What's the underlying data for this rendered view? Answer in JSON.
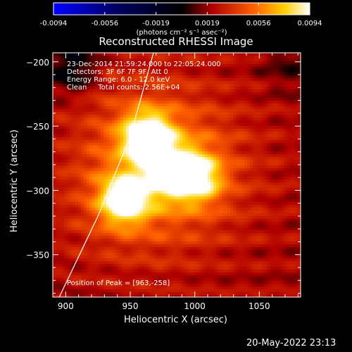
{
  "chart_data": {
    "type": "heatmap",
    "title": "Reconstructed RHESSI Image",
    "xlabel": "Heliocentric X (arcsec)",
    "ylabel": "Heliocentric Y (arcsec)",
    "xlim": [
      890,
      1082
    ],
    "ylim": [
      -383,
      -193
    ],
    "xticks": [
      "900",
      "950",
      "1000",
      "1050"
    ],
    "yticks": [
      "-200",
      "-250",
      "-300",
      "-350"
    ],
    "colorbar": {
      "range": [
        -0.0094,
        0.0094
      ],
      "ticks": [
        "-0.0094",
        "-0.0056",
        "-0.0019",
        "0.0019",
        "0.0056",
        "0.0094"
      ],
      "unit_label": "(photons cm⁻² s⁻¹ asec⁻²)"
    },
    "sources": [
      {
        "x": 963,
        "y": -258,
        "peak": 0.0094
      },
      {
        "x": 945,
        "y": -308,
        "peak": 0.0085
      },
      {
        "x": 1002,
        "y": -290,
        "peak": 0.007
      },
      {
        "x": 980,
        "y": -285,
        "peak": 0.0065
      }
    ],
    "limb_curve": [
      [
        895,
        -383
      ],
      [
        925,
        -320
      ],
      [
        950,
        -258
      ],
      [
        968,
        -193
      ]
    ]
  },
  "annotations": {
    "time": "23-Dec-2014 21:59:24.000 to 22:05:24.000",
    "detectors": "Detectors: 3F 6F 7F 9F, Att 0",
    "energy": "Energy Range: 6.0 - 12.0 keV",
    "clean": "Clean     Total counts: 2.56E+04",
    "peak": "Position of Peak = [963,-258]"
  },
  "footer_date": "20-May-2022 23:13",
  "colors": {
    "background": "#000000",
    "axis": "#ffffff"
  }
}
